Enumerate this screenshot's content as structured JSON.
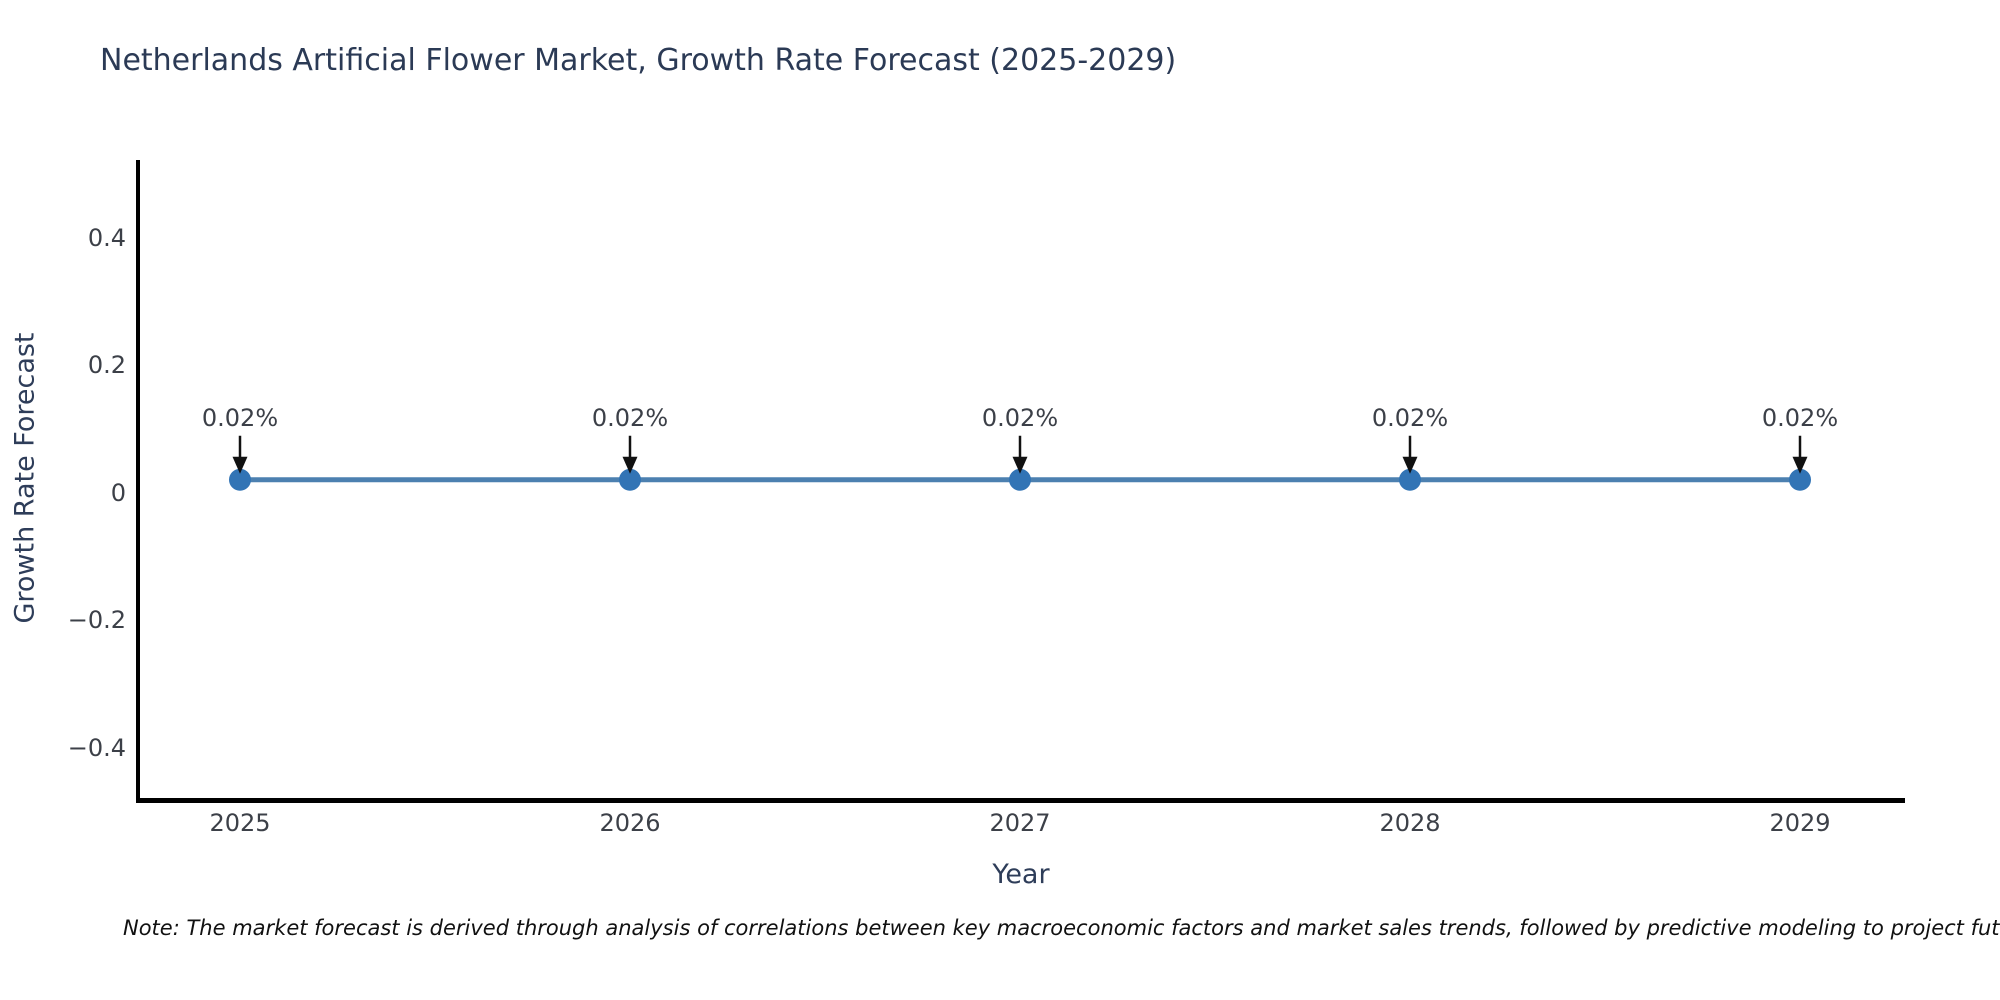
{
  "chart_data": {
    "type": "line",
    "title": "Netherlands Artificial Flower Market, Growth Rate Forecast (2025-2029)",
    "xlabel": "Year",
    "ylabel": "Growth Rate Forecast",
    "categories": [
      "2025",
      "2026",
      "2027",
      "2028",
      "2029"
    ],
    "series": [
      {
        "name": "Growth Rate Forecast",
        "values": [
          0.02,
          0.02,
          0.02,
          0.02,
          0.02
        ],
        "point_labels": [
          "0.02%",
          "0.02%",
          "0.02%",
          "0.02%",
          "0.02%"
        ]
      }
    ],
    "yticks": [
      0.4,
      0.2,
      0,
      -0.2,
      -0.4
    ],
    "ytick_labels": [
      "0.4",
      "0.2",
      "0",
      "−0.2",
      "−0.4"
    ],
    "ylim": [
      -0.48,
      0.52
    ],
    "grid": false,
    "legend_position": "none",
    "colors": {
      "line": "#4c80b0",
      "marker": "#3274b5",
      "axis": "#000000",
      "arrow": "#111111"
    }
  },
  "note": "Note: The market forecast is derived through analysis of correlations between key macroeconomic factors and market sales trends, followed by predictive modeling to project future sales."
}
